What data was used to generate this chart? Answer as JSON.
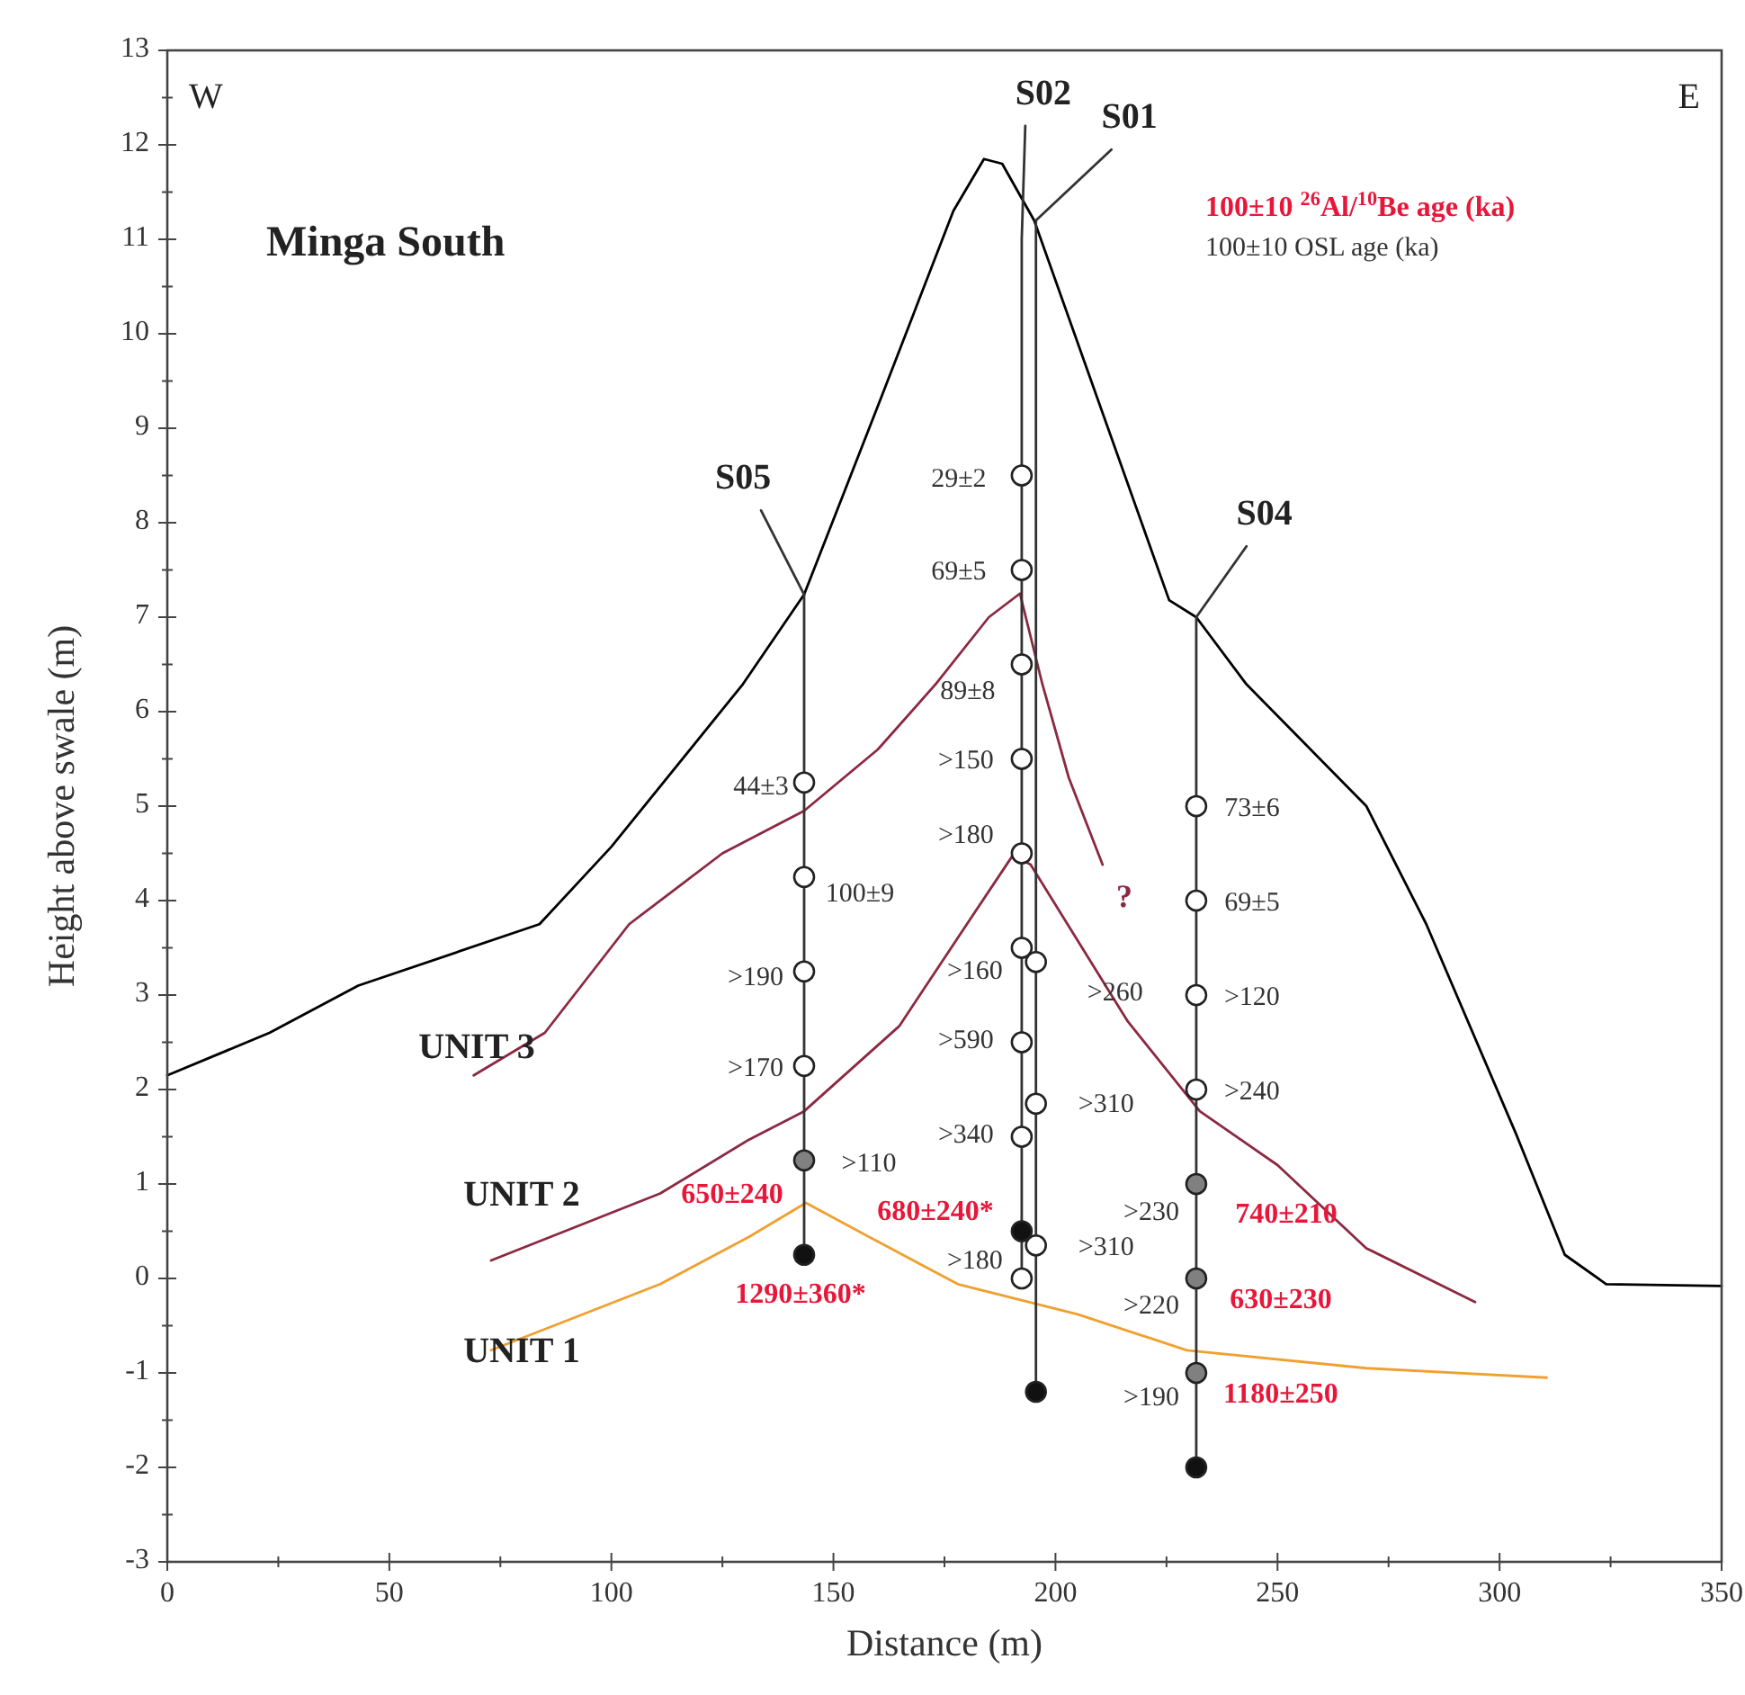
{
  "chart_data": {
    "type": "line",
    "title": "Minga South",
    "xlabel": "Distance (m)",
    "ylabel": "Height above swale (m)",
    "xlim": [
      0,
      350
    ],
    "ylim": [
      -3,
      13
    ],
    "xticks": [
      0,
      {
        "value": 25,
        "label": null
      },
      50,
      {
        "value": 75,
        "label": null
      },
      100,
      {
        "value": 125,
        "label": null
      },
      150,
      {
        "value": 175,
        "label": null
      },
      200,
      {
        "value": 225,
        "label": null
      },
      250,
      {
        "value": 275,
        "label": null
      },
      300,
      {
        "value": 325,
        "label": null
      },
      350
    ],
    "yticks": [
      -3,
      {
        "value": -2.5,
        "label": null
      },
      -2,
      {
        "value": -1.5,
        "label": null
      },
      -1,
      {
        "value": -0.5,
        "label": null
      },
      0,
      {
        "value": 0.5,
        "label": null
      },
      1,
      {
        "value": 1.5,
        "label": null
      },
      2,
      {
        "value": 2.5,
        "label": null
      },
      3,
      {
        "value": 3.5,
        "label": null
      },
      4,
      {
        "value": 4.5,
        "label": null
      },
      5,
      {
        "value": 5.5,
        "label": null
      },
      6,
      {
        "value": 6.5,
        "label": null
      },
      7,
      {
        "value": 7.5,
        "label": null
      },
      8,
      {
        "value": 8.5,
        "label": null
      },
      9,
      {
        "value": 9.5,
        "label": null
      },
      10,
      {
        "value": 10.5,
        "label": null
      },
      11,
      {
        "value": 11.5,
        "label": null
      },
      12,
      {
        "value": 12.5,
        "label": null
      },
      13
    ],
    "grid": false,
    "series": [
      {
        "color": "#000000",
        "x": [
          0,
          23,
          43,
          83.8,
          100,
          129.6,
          143.4,
          160.8,
          177,
          183.9,
          188,
          195.2,
          225.6,
          231.7,
          243,
          270,
          283.5,
          303.8,
          314.7,
          324,
          350
        ],
        "values": [
          2.15,
          2.6,
          3.1,
          3.75,
          4.57,
          6.29,
          7.24,
          9.33,
          11.3,
          11.85,
          11.8,
          11.2,
          7.18,
          7.0,
          6.29,
          5.0,
          3.75,
          1.52,
          0.25,
          -0.06,
          -0.08
        ]
      },
      {
        "color": "#8b2942",
        "x": [
          69,
          85,
          104,
          125,
          143.4,
          160,
          173,
          185,
          192,
          197,
          203,
          210.6
        ],
        "values": [
          2.15,
          2.6,
          3.75,
          4.5,
          4.95,
          5.6,
          6.29,
          7.0,
          7.25,
          6.3,
          5.3,
          4.38
        ]
      },
      {
        "color": "#8b2942",
        "x": [
          72.9,
          111,
          131,
          143.4,
          164.8,
          178.2,
          190.4,
          194.4,
          216.3,
          232.5,
          250,
          270,
          294.5
        ],
        "values": [
          0.19,
          0.9,
          1.47,
          1.77,
          2.67,
          3.62,
          4.48,
          4.38,
          2.72,
          1.77,
          1.2,
          0.32,
          -0.25
        ]
      },
      {
        "color": "#f0a030",
        "x": [
          72.9,
          111,
          131,
          143.8,
          158,
          178,
          205,
          229.6,
          270,
          310.6
        ],
        "values": [
          -0.76,
          -0.06,
          0.44,
          0.8,
          0.44,
          -0.06,
          -0.38,
          -0.76,
          -0.95,
          -1.05
        ]
      },
      {
        "name": "S05",
        "color": "#333333",
        "x": [
          133.7,
          143.4,
          143.4
        ],
        "values": [
          8.13,
          7.24,
          0.25
        ]
      },
      {
        "name": "S02",
        "color": "#333333",
        "x": [
          193.2,
          192.4,
          192.4
        ],
        "values": [
          12.2,
          11.0,
          0
        ]
      },
      {
        "name": "S01",
        "color": "#333333",
        "x": [
          212.6,
          195.6,
          195.6
        ],
        "values": [
          11.95,
          11.2,
          -1.2
        ]
      },
      {
        "name": "S04",
        "color": "#333333",
        "x": [
          243,
          231.7,
          231.7
        ],
        "values": [
          7.75,
          7.0,
          -2
        ]
      },
      {
        "type": "scatter",
        "marker": "circle",
        "color": "#ffffff",
        "x": [
          143.4,
          143.4,
          143.4,
          143.4,
          192.4,
          192.4,
          192.4,
          192.4,
          192.4,
          192.4,
          192.4,
          192.4,
          192.4,
          195.6,
          195.6,
          195.6,
          231.7,
          231.7,
          231.7,
          231.7
        ],
        "values": [
          5.25,
          4.25,
          3.25,
          2.25,
          8.5,
          7.5,
          6.5,
          5.5,
          4.5,
          3.5,
          2.5,
          1.5,
          0,
          3.35,
          1.85,
          0.35,
          5,
          4,
          3,
          2
        ],
        "value_labels": [
          "44±3",
          "100±9",
          ">190",
          ">170",
          "29±2",
          "69±5",
          "89±8",
          ">150",
          ">180",
          ">160",
          ">590",
          ">340",
          ">180",
          ">260",
          ">310",
          ">310",
          "73±6",
          "69±5",
          ">120",
          ">240"
        ]
      },
      {
        "type": "scatter",
        "marker": "circle",
        "color": "#808080",
        "x": [
          143.4,
          231.7,
          231.7,
          231.7
        ],
        "values": [
          1.25,
          1,
          0,
          -1
        ],
        "value_labels": [
          "650±240",
          "740±210",
          "630±230",
          "1180±250"
        ]
      },
      {
        "type": "scatter",
        "marker": "circle",
        "color": "#111111",
        "x": [
          143.4,
          192.4,
          195.6,
          231.7
        ],
        "values": [
          0.25,
          0.5,
          -1.2,
          -2
        ],
        "value_labels": [
          "1290±360*",
          "680±240*",
          null,
          null
        ]
      }
    ],
    "annotations": [
      "W",
      "E",
      "100±10 $^{26}$Al/$^{10}$Be age (ka)",
      "100±10 OSL age (ka)",
      "UNIT 3",
      "UNIT 2",
      "UNIT 1",
      "?",
      ">110",
      ">230",
      ">220",
      ">190"
    ]
  }
}
